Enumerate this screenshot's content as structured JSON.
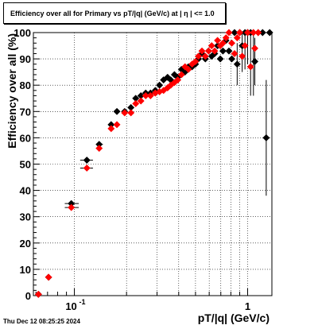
{
  "footer_timestamp": "Thu Dec 12 08:25:25 2024",
  "chart_data": {
    "type": "scatter",
    "title": "Efficiency over all for Primary vs pT/|q| (GeV/c) at |  η  | <= 1.0",
    "xlabel": "pT/|q| (GeV/c)",
    "ylabel": "Efficiency over all (%)",
    "xscale": "log",
    "xlim": [
      0.058,
      1.38
    ],
    "ylim": [
      0,
      100
    ],
    "yticks": [
      0,
      10,
      20,
      30,
      40,
      50,
      60,
      70,
      80,
      90,
      100
    ],
    "yticklabels": [
      "0",
      "10",
      "20",
      "30",
      "40",
      "50",
      "60",
      "70",
      "80",
      "90",
      "100"
    ],
    "xticks": [
      0.1,
      1
    ],
    "xticklabels": [
      "10^-1",
      "1"
    ],
    "grid": true,
    "colors": {
      "series_a": "#000000",
      "series_b": "#ff0000"
    },
    "series": [
      {
        "marker": "diamond",
        "color": "#000000",
        "points": [
          {
            "x": 0.062,
            "y": 0.5
          },
          {
            "x": 0.071,
            "y": 7
          },
          {
            "x": 0.096,
            "y": 35
          },
          {
            "x": 0.118,
            "y": 51.5
          },
          {
            "x": 0.139,
            "y": 57.5
          },
          {
            "x": 0.163,
            "y": 65
          },
          {
            "x": 0.176,
            "y": 70
          },
          {
            "x": 0.195,
            "y": 70
          },
          {
            "x": 0.212,
            "y": 71.5
          },
          {
            "x": 0.226,
            "y": 75
          },
          {
            "x": 0.242,
            "y": 76
          },
          {
            "x": 0.258,
            "y": 77
          },
          {
            "x": 0.275,
            "y": 77
          },
          {
            "x": 0.293,
            "y": 78
          },
          {
            "x": 0.31,
            "y": 80
          },
          {
            "x": 0.327,
            "y": 82
          },
          {
            "x": 0.345,
            "y": 83
          },
          {
            "x": 0.36,
            "y": 82
          },
          {
            "x": 0.378,
            "y": 84
          },
          {
            "x": 0.395,
            "y": 83
          },
          {
            "x": 0.415,
            "y": 86
          },
          {
            "x": 0.435,
            "y": 85
          },
          {
            "x": 0.455,
            "y": 87
          },
          {
            "x": 0.478,
            "y": 87
          },
          {
            "x": 0.5,
            "y": 88
          },
          {
            "x": 0.52,
            "y": 90
          },
          {
            "x": 0.545,
            "y": 92
          },
          {
            "x": 0.57,
            "y": 90
          },
          {
            "x": 0.595,
            "y": 93
          },
          {
            "x": 0.62,
            "y": 91
          },
          {
            "x": 0.645,
            "y": 92
          },
          {
            "x": 0.67,
            "y": 95
          },
          {
            "x": 0.695,
            "y": 90
          },
          {
            "x": 0.72,
            "y": 93
          },
          {
            "x": 0.75,
            "y": 97
          },
          {
            "x": 0.78,
            "y": 93
          },
          {
            "x": 0.81,
            "y": 90
          },
          {
            "x": 0.84,
            "y": 100
          },
          {
            "x": 0.87,
            "y": 88
          },
          {
            "x": 0.9,
            "y": 100
          },
          {
            "x": 0.93,
            "y": 95
          },
          {
            "x": 0.965,
            "y": 100
          },
          {
            "x": 1.0,
            "y": 100
          },
          {
            "x": 1.04,
            "y": 100
          },
          {
            "x": 1.08,
            "y": 100
          },
          {
            "x": 1.1,
            "y": 89
          },
          {
            "x": 1.15,
            "y": 100
          },
          {
            "x": 1.22,
            "y": 100
          },
          {
            "x": 1.28,
            "y": 60
          },
          {
            "x": 1.34,
            "y": 100
          }
        ]
      },
      {
        "marker": "diamond",
        "color": "#ff0000",
        "points": [
          {
            "x": 0.062,
            "y": 0.5
          },
          {
            "x": 0.071,
            "y": 7
          },
          {
            "x": 0.096,
            "y": 33.5
          },
          {
            "x": 0.118,
            "y": 48.5
          },
          {
            "x": 0.139,
            "y": 56
          },
          {
            "x": 0.163,
            "y": 63.5
          },
          {
            "x": 0.176,
            "y": 65
          },
          {
            "x": 0.195,
            "y": 69.5
          },
          {
            "x": 0.212,
            "y": 69.5
          },
          {
            "x": 0.226,
            "y": 73
          },
          {
            "x": 0.242,
            "y": 74
          },
          {
            "x": 0.258,
            "y": 76
          },
          {
            "x": 0.275,
            "y": 76
          },
          {
            "x": 0.293,
            "y": 77
          },
          {
            "x": 0.31,
            "y": 77.5
          },
          {
            "x": 0.327,
            "y": 78
          },
          {
            "x": 0.345,
            "y": 79
          },
          {
            "x": 0.36,
            "y": 80
          },
          {
            "x": 0.378,
            "y": 81
          },
          {
            "x": 0.395,
            "y": 82
          },
          {
            "x": 0.415,
            "y": 84
          },
          {
            "x": 0.435,
            "y": 87
          },
          {
            "x": 0.455,
            "y": 86
          },
          {
            "x": 0.478,
            "y": 88
          },
          {
            "x": 0.5,
            "y": 89
          },
          {
            "x": 0.52,
            "y": 91
          },
          {
            "x": 0.545,
            "y": 93
          },
          {
            "x": 0.57,
            "y": 91
          },
          {
            "x": 0.595,
            "y": 93
          },
          {
            "x": 0.62,
            "y": 95
          },
          {
            "x": 0.645,
            "y": 93
          },
          {
            "x": 0.67,
            "y": 97
          },
          {
            "x": 0.695,
            "y": 95
          },
          {
            "x": 0.72,
            "y": 96
          },
          {
            "x": 0.75,
            "y": 98
          },
          {
            "x": 0.78,
            "y": 100
          },
          {
            "x": 0.81,
            "y": 96
          },
          {
            "x": 0.84,
            "y": 92
          },
          {
            "x": 0.87,
            "y": 98
          },
          {
            "x": 0.9,
            "y": 100
          },
          {
            "x": 0.93,
            "y": 91
          },
          {
            "x": 0.965,
            "y": 95
          },
          {
            "x": 1.0,
            "y": 100
          },
          {
            "x": 1.04,
            "y": 87
          },
          {
            "x": 1.08,
            "y": 100
          },
          {
            "x": 1.1,
            "y": 94
          },
          {
            "x": 1.15,
            "y": 100
          }
        ]
      }
    ],
    "error_bars": [
      {
        "x": 1.04,
        "y_low": 76,
        "y_high": 100
      },
      {
        "x": 1.08,
        "y_low": 76,
        "y_high": 100
      },
      {
        "x": 1.1,
        "y_low": 80,
        "y_high": 98
      },
      {
        "x": 1.28,
        "y_low": 38,
        "y_high": 82
      },
      {
        "x": 0.87,
        "y_low": 80,
        "y_high": 96
      },
      {
        "x": 0.93,
        "y_low": 85,
        "y_high": 100
      },
      {
        "x": 0.965,
        "y_low": 86,
        "y_high": 100
      },
      {
        "x": 1.0,
        "y_low": 88,
        "y_high": 100
      }
    ],
    "x_error_bars": [
      {
        "x_low": 0.088,
        "x_high": 0.106,
        "y": 35
      },
      {
        "x_low": 0.088,
        "x_high": 0.106,
        "y": 33.5
      },
      {
        "x_low": 0.108,
        "x_high": 0.128,
        "y": 51.5
      },
      {
        "x_low": 0.108,
        "x_high": 0.128,
        "y": 48.5
      },
      {
        "x_low": 0.134,
        "x_high": 0.146,
        "y": 57.5
      }
    ]
  }
}
